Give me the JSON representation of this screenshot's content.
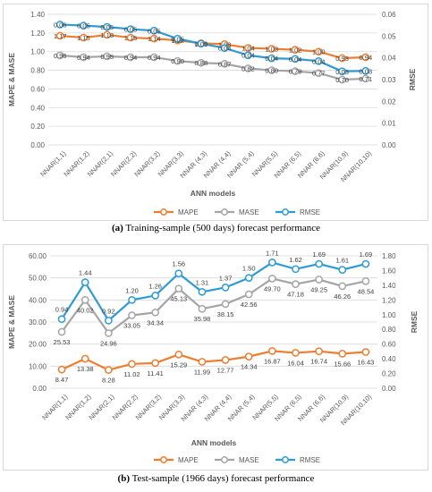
{
  "captions": {
    "a_label": "(a)",
    "a_text": "Training-sample (500 days) forecast performance",
    "b_label": "(b)",
    "b_text": "Test-sample (1966 days) forecast performance"
  },
  "chart_data": [
    {
      "type": "line",
      "categories": [
        "NNAR(1,1)",
        "NNAR(1,2)",
        "NNAR(2,1)",
        "NNAR(2,2)",
        "NNAR(3,2)",
        "NNAR(3,3)",
        "NNAR (4,3)",
        "NNAR (4,4)",
        "NNAR (5,4)",
        "NNAR(5,5)",
        "NNAR (6,5)",
        "NNAR (6,6)",
        "NNAR(10,9)",
        "NNAR(10,10)"
      ],
      "xlabel": "ANN models",
      "ylabel": "MAPE & MASE",
      "y2label": "RMSE",
      "ylim": [
        0,
        1.4
      ],
      "y2lim": [
        0,
        0.06
      ],
      "yticks": [
        "0.00",
        "0.20",
        "0.40",
        "0.60",
        "0.80",
        "1.00",
        "1.20",
        "1.40"
      ],
      "y2ticks": [
        "0.00",
        "0.01",
        "0.02",
        "0.03",
        "0.04",
        "0.05",
        "0.06"
      ],
      "grid": true,
      "legend": "bottom",
      "series": [
        {
          "name": "MAPE",
          "axis": "left",
          "color": "#ed7d31",
          "values": [
            1.17,
            1.15,
            1.18,
            1.15,
            1.14,
            1.12,
            1.09,
            1.08,
            1.04,
            1.03,
            1.02,
            1.0,
            0.93,
            0.94
          ],
          "labels": [
            "1.17",
            "1.15",
            "1.18",
            "1.15",
            "1.14",
            "1.12",
            "1.09",
            "1.08",
            "1.04",
            "1.03",
            "1.02",
            "1.00",
            "0.93",
            "0.94"
          ]
        },
        {
          "name": "MASE",
          "axis": "left",
          "color": "#a5a5a5",
          "values": [
            0.96,
            0.94,
            0.95,
            0.94,
            0.94,
            0.9,
            0.88,
            0.87,
            0.82,
            0.8,
            0.79,
            0.77,
            0.7,
            0.71
          ],
          "labels": [
            "0.96",
            "0.94",
            "0.95",
            "0.94",
            "0.94",
            "0.90",
            "0.88",
            "0.87",
            "0.82",
            "0.80",
            "0.79",
            "0.77",
            "0.70",
            "0.71"
          ]
        },
        {
          "name": "RMSE",
          "axis": "right",
          "color": "#2e9bd4",
          "values": [
            0.0553,
            0.0548,
            0.0542,
            0.0532,
            0.0525,
            0.0488,
            0.0465,
            0.0445,
            0.0412,
            0.0398,
            0.0395,
            0.0385,
            0.0338,
            0.034
          ],
          "labels": [
            "0.06",
            "0.05",
            "0.05",
            "0.05",
            "0.05",
            "0.05",
            "0.05",
            "0.04",
            "0.04",
            "0.04",
            "0.04",
            "0.04",
            "0.03",
            "0.03"
          ]
        }
      ]
    },
    {
      "type": "line",
      "categories": [
        "NNAR(1,1)",
        "NNAR(1,2)",
        "NNAR(2,1)",
        "NNAR(2,2)",
        "NNAR(3,2)",
        "NNAR(3,3)",
        "NNAR (4,3)",
        "NNAR (4,4)",
        "NNAR (5,4)",
        "NNAR(5,5)",
        "NNAR (6,5)",
        "NNAR (6,6)",
        "NNAR(10,9)",
        "NNAR(10,10)"
      ],
      "xlabel": "ANN models",
      "ylabel": "MAPE & MASE",
      "y2label": "RMSE",
      "ylim": [
        0,
        60
      ],
      "y2lim": [
        0,
        1.8
      ],
      "yticks": [
        "0.00",
        "10.00",
        "20.00",
        "30.00",
        "40.00",
        "50.00",
        "60.00"
      ],
      "y2ticks": [
        "0.00",
        "0.20",
        "0.40",
        "0.60",
        "0.80",
        "1.00",
        "1.20",
        "1.40",
        "1.60",
        "1.80"
      ],
      "grid": true,
      "legend": "bottom",
      "series": [
        {
          "name": "MAPE",
          "axis": "left",
          "color": "#ed7d31",
          "values": [
            8.47,
            13.38,
            8.28,
            11.02,
            11.41,
            15.29,
            11.99,
            12.77,
            14.34,
            16.87,
            16.04,
            16.74,
            15.66,
            16.43
          ],
          "labels": [
            "8.47",
            "13.38",
            "8.28",
            "11.02",
            "11.41",
            "15.29",
            "11.99",
            "12.77",
            "14.34",
            "16.87",
            "16.04",
            "16.74",
            "15.66",
            "16.43"
          ]
        },
        {
          "name": "MASE",
          "axis": "left",
          "color": "#a5a5a5",
          "values": [
            25.53,
            40.02,
            24.96,
            33.05,
            34.34,
            45.13,
            35.98,
            38.15,
            42.56,
            49.7,
            47.18,
            49.25,
            46.26,
            48.54
          ],
          "labels": [
            "25.53",
            "40.02",
            "24.96",
            "33.05",
            "34.34",
            "45.13",
            "35.98",
            "38.15",
            "42.56",
            "49.70",
            "47.18",
            "49.25",
            "46.26",
            "48.54"
          ]
        },
        {
          "name": "RMSE",
          "axis": "right",
          "color": "#2e9bd4",
          "values": [
            0.94,
            1.44,
            0.92,
            1.2,
            1.26,
            1.56,
            1.31,
            1.37,
            1.5,
            1.71,
            1.62,
            1.69,
            1.61,
            1.69
          ],
          "labels": [
            "0.94",
            "1.44",
            "0.92",
            "1.20",
            "1.26",
            "1.56",
            "1.31",
            "1.37",
            "1.50",
            "1.71",
            "1.62",
            "1.69",
            "1.61",
            "1.69"
          ]
        }
      ]
    }
  ]
}
